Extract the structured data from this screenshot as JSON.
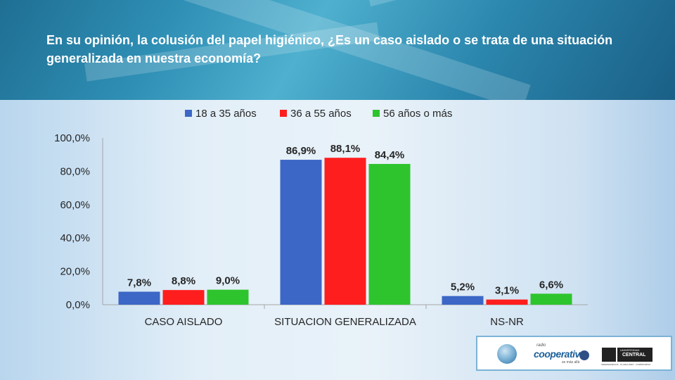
{
  "title": "En su opinión, la colusión del papel higiénico, ¿Es un caso aislado o  se trata de una situación generalizada en nuestra economía?",
  "colors": {
    "series_1": "#3c67c6",
    "series_2": "#ff1e1e",
    "series_3": "#2ec42e",
    "axis": "#a6a6a6",
    "text": "#262626"
  },
  "chart_data": {
    "type": "bar",
    "categories": [
      "CASO AISLADO",
      "SITUACION GENERALIZADA",
      "NS-NR"
    ],
    "series": [
      {
        "name": "18 a 35 años",
        "values": [
          7.8,
          86.9,
          5.2
        ],
        "labels": [
          "7,8%",
          "86,9%",
          "5,2%"
        ]
      },
      {
        "name": "36 a 55 años",
        "values": [
          8.8,
          88.1,
          3.1
        ],
        "labels": [
          "8,8%",
          "88,1%",
          "3,1%"
        ]
      },
      {
        "name": "56 años o más",
        "values": [
          9.0,
          84.4,
          6.6
        ],
        "labels": [
          "9,0%",
          "84,4%",
          "6,6%"
        ]
      }
    ],
    "ylim": [
      0,
      100
    ],
    "yticks": [
      "0,0%",
      "20,0%",
      "40,0%",
      "60,0%",
      "80,0%",
      "100,0%"
    ],
    "xlabel": "",
    "ylabel": "",
    "grid": false,
    "legend": "top"
  },
  "logos": {
    "brand_small": "radio",
    "brand_name": "cooperativa",
    "brand_tag": "se más allá",
    "university_small": "UNIVERSIDAD",
    "university_name": "CENTRAL",
    "university_tag": "INDEPENDENCIA · PLURALISMO · COMPROMISO"
  }
}
